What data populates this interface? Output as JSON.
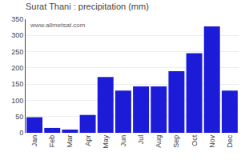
{
  "chart_data": {
    "type": "bar",
    "title": "Surat Thani : precipitation (mm)",
    "categories": [
      "Jan",
      "Feb",
      "Mar",
      "Apr",
      "May",
      "Jun",
      "Jul",
      "Aug",
      "Sep",
      "Oct",
      "Nov",
      "Dec"
    ],
    "values": [
      48,
      15,
      10,
      55,
      172,
      130,
      143,
      143,
      190,
      245,
      328,
      130
    ],
    "color": "#1c1cd8",
    "ylim": [
      0,
      350
    ],
    "yticks": [
      0,
      50,
      100,
      150,
      200,
      250,
      300,
      350
    ],
    "grid": true,
    "annotations": [
      "www.allmetsat.com"
    ]
  }
}
